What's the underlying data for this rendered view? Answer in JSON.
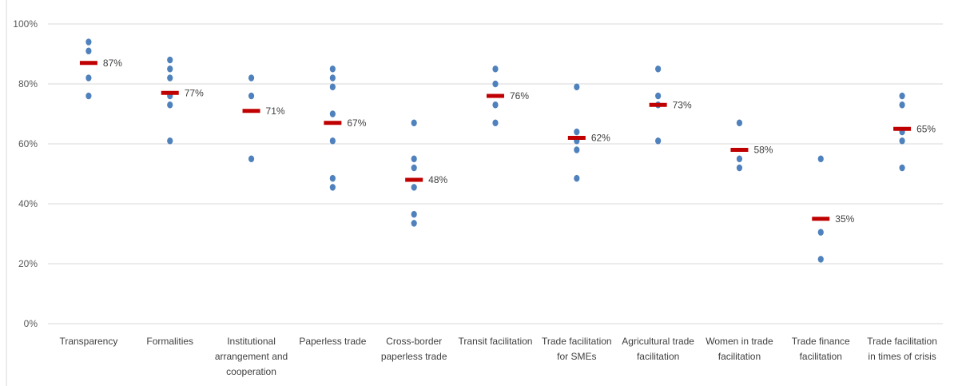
{
  "chart_data": {
    "type": "scatter",
    "categories": [
      [
        "Transparency"
      ],
      [
        "Formalities"
      ],
      [
        "Institutional",
        "arrangement and",
        "cooperation"
      ],
      [
        "Paperless trade"
      ],
      [
        "Cross-border",
        "paperless trade"
      ],
      [
        "Transit facilitation"
      ],
      [
        "Trade facilitation",
        "for SMEs"
      ],
      [
        "Agricultural trade",
        "facilitation"
      ],
      [
        "Women in trade",
        "facilitation"
      ],
      [
        "Trade finance",
        "facilitation"
      ],
      [
        "Trade facilitation",
        "in times of crisis"
      ]
    ],
    "y_tick_labels": [
      "0%",
      "20%",
      "40%",
      "60%",
      "80%",
      "100%"
    ],
    "y_ticks": [
      0,
      20,
      40,
      60,
      80,
      100
    ],
    "ylim": [
      0,
      100
    ],
    "grid": true,
    "points_series": [
      [
        94,
        91,
        82,
        76
      ],
      [
        88,
        85,
        82,
        76,
        73,
        61
      ],
      [
        82,
        76,
        55
      ],
      [
        85,
        82,
        79,
        70,
        61,
        48.5,
        45.5
      ],
      [
        67,
        55,
        52,
        45.5,
        36.5,
        33.5
      ],
      [
        85,
        80,
        73,
        67
      ],
      [
        79,
        64,
        61,
        58,
        48.5
      ],
      [
        85,
        76,
        73,
        61
      ],
      [
        67,
        55,
        52
      ],
      [
        55,
        30.5,
        21.5
      ],
      [
        76,
        73,
        64,
        61,
        52
      ]
    ],
    "averages": [
      87,
      77,
      71,
      67,
      48,
      76,
      62,
      73,
      58,
      35,
      65
    ],
    "average_labels": [
      "87%",
      "77%",
      "71%",
      "67%",
      "48%",
      "76%",
      "62%",
      "73%",
      "58%",
      "35%",
      "65%"
    ],
    "colors": {
      "points": "#4f81bd",
      "average": "#c00000",
      "grid": "#d9d9d9",
      "text": "#404040"
    }
  }
}
